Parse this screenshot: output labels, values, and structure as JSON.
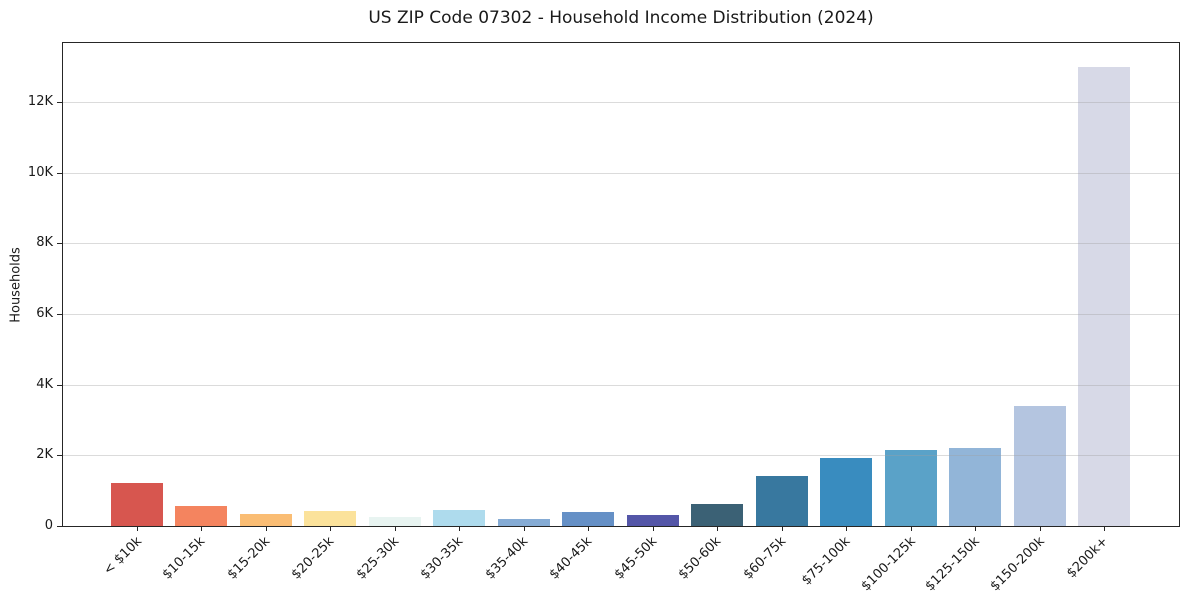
{
  "chart_data": {
    "type": "bar",
    "title": "US ZIP Code 07302 - Household Income Distribution (2024)",
    "xlabel": "",
    "ylabel": "Households",
    "categories": [
      "< $10k",
      "$10-15k",
      "$15-20k",
      "$20-25k",
      "$25-30k",
      "$30-35k",
      "$35-40k",
      "$40-45k",
      "$45-50k",
      "$50-60k",
      "$60-75k",
      "$75-100k",
      "$100-125k",
      "$125-150k",
      "$150-200k",
      "$200k+"
    ],
    "values": [
      1230,
      570,
      330,
      415,
      245,
      455,
      185,
      410,
      305,
      635,
      1420,
      1915,
      2155,
      2195,
      3400,
      12980
    ],
    "bar_colors": [
      "#d7564f",
      "#f4845f",
      "#fabd74",
      "#fbe29b",
      "#e8f4f1",
      "#aedbed",
      "#85abd4",
      "#6590c6",
      "#5456a8",
      "#3b6175",
      "#38789f",
      "#398cbf",
      "#5aa2c8",
      "#92b5d8",
      "#b4c5e0",
      "#d7d9e7"
    ],
    "yticks": {
      "labels": [
        "0",
        "2K",
        "4K",
        "6K",
        "8K",
        "10K",
        "12K"
      ],
      "values": [
        0,
        2000,
        4000,
        6000,
        8000,
        10000,
        12000
      ]
    },
    "ylim": [
      0,
      13700
    ],
    "grid": "horizontal",
    "legend": "none",
    "axis_color": "#262626",
    "background_color": "#ffffff"
  }
}
